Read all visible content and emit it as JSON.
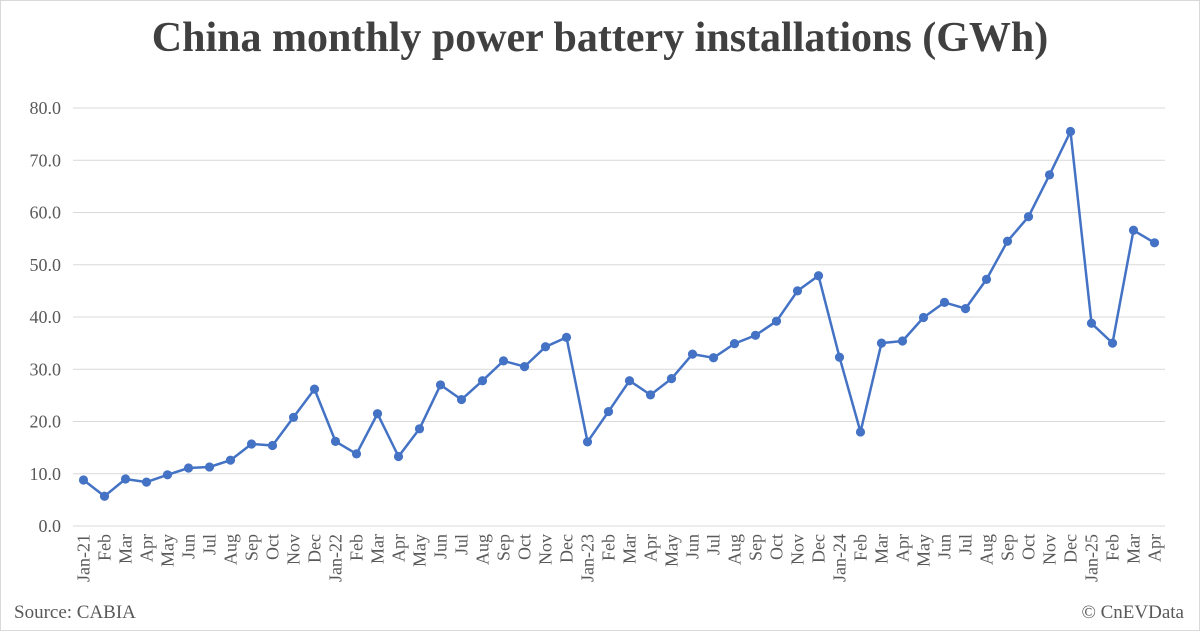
{
  "chart_data": {
    "type": "line",
    "title": "China monthly power battery installations (GWh)",
    "categories": [
      "Jan-21",
      "Feb",
      "Mar",
      "Apr",
      "May",
      "Jun",
      "Jul",
      "Aug",
      "Sep",
      "Oct",
      "Nov",
      "Dec",
      "Jan-22",
      "Feb",
      "Mar",
      "Apr",
      "May",
      "Jun",
      "Jul",
      "Aug",
      "Sep",
      "Oct",
      "Nov",
      "Dec",
      "Jan-23",
      "Feb",
      "Mar",
      "Apr",
      "May",
      "Jun",
      "Jul",
      "Aug",
      "Sep",
      "Oct",
      "Nov",
      "Dec",
      "Jan-24",
      "Feb",
      "Mar",
      "Apr",
      "May",
      "Jun",
      "Jul",
      "Aug",
      "Sep",
      "Oct",
      "Nov",
      "Dec",
      "Jan-25",
      "Feb",
      "Mar",
      "Apr"
    ],
    "series": [
      {
        "values": [
          8.8,
          5.7,
          9.0,
          8.4,
          9.8,
          11.1,
          11.3,
          12.6,
          15.7,
          15.4,
          20.8,
          26.2,
          16.2,
          13.8,
          21.5,
          13.3,
          18.6,
          27.0,
          24.2,
          27.8,
          31.6,
          30.5,
          34.3,
          36.1,
          16.1,
          21.9,
          27.8,
          25.1,
          28.2,
          32.9,
          32.2,
          34.9,
          36.5,
          39.2,
          45.0,
          47.9,
          32.3,
          18.0,
          35.0,
          35.4,
          39.9,
          42.8,
          41.6,
          47.2,
          54.5,
          59.2,
          67.2,
          75.5,
          38.8,
          35.0,
          56.6,
          54.2
        ],
        "color": "#4472c4"
      }
    ],
    "ylim": [
      0,
      80
    ],
    "yticks": [
      "0.0",
      "10.0",
      "20.0",
      "30.0",
      "40.0",
      "50.0",
      "60.0",
      "70.0",
      "80.0"
    ],
    "grid": true,
    "legend": "none"
  },
  "footer": {
    "source": "Source: CABIA",
    "copyright": "© CnEVData"
  },
  "colors": {
    "series": "#4472c4",
    "grid": "#d9d9d9",
    "text": "#595959",
    "title": "#404040"
  }
}
